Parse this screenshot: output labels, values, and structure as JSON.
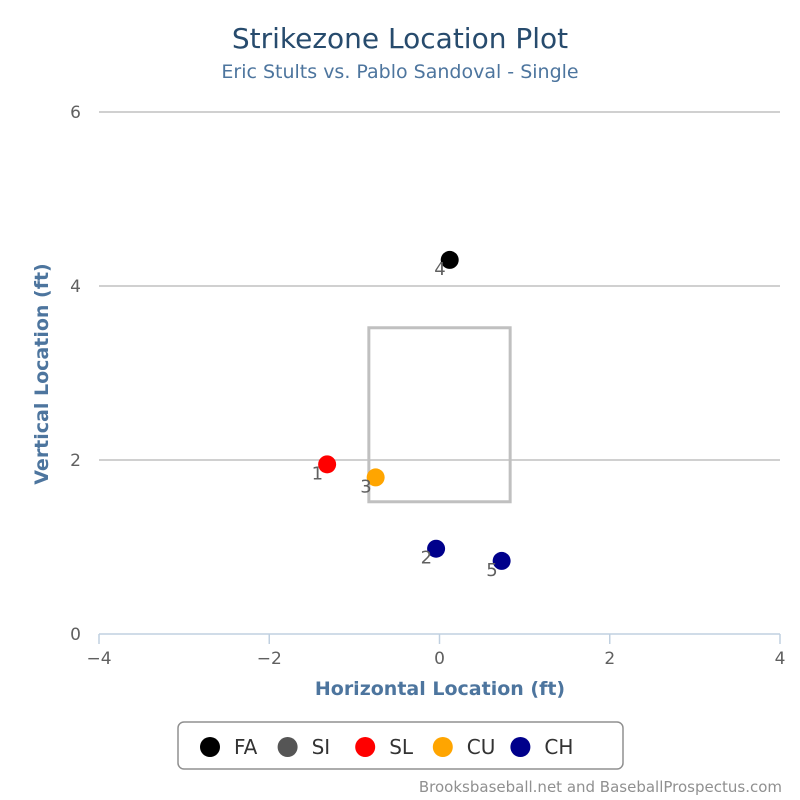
{
  "chart_data": {
    "type": "scatter",
    "title": "Strikezone Location Plot",
    "subtitle": "Eric Stults vs. Pablo Sandoval - Single",
    "xlabel": "Horizontal Location (ft)",
    "ylabel": "Vertical Location (ft)",
    "xlim": [
      -4,
      4
    ],
    "ylim": [
      0,
      6
    ],
    "x_ticks": [
      -4,
      -2,
      0,
      2,
      4
    ],
    "x_tick_labels": [
      "−4",
      "−2",
      "0",
      "2",
      "4"
    ],
    "y_ticks": [
      0,
      2,
      4,
      6
    ],
    "y_tick_labels": [
      "0",
      "2",
      "4",
      "6"
    ],
    "grid": "horizontal",
    "legend_position": "bottom-center",
    "strike_zone": {
      "x": [
        -0.83,
        0.83
      ],
      "y": [
        1.52,
        3.52
      ]
    },
    "series": [
      {
        "name": "FA",
        "color": "#000000",
        "points": [
          {
            "x": 0.12,
            "y": 4.3,
            "label": "4"
          }
        ]
      },
      {
        "name": "SI",
        "color": "#555555",
        "points": []
      },
      {
        "name": "SL",
        "color": "#ff0000",
        "points": [
          {
            "x": -1.32,
            "y": 1.95,
            "label": "1"
          }
        ]
      },
      {
        "name": "CU",
        "color": "#ffa500",
        "points": [
          {
            "x": -0.75,
            "y": 1.8,
            "label": "3"
          }
        ]
      },
      {
        "name": "CH",
        "color": "#00008b",
        "points": [
          {
            "x": -0.04,
            "y": 0.98,
            "label": "2"
          },
          {
            "x": 0.73,
            "y": 0.84,
            "label": "5"
          }
        ]
      }
    ],
    "credit": "Brooksbaseball.net and BaseballProspectus.com"
  }
}
